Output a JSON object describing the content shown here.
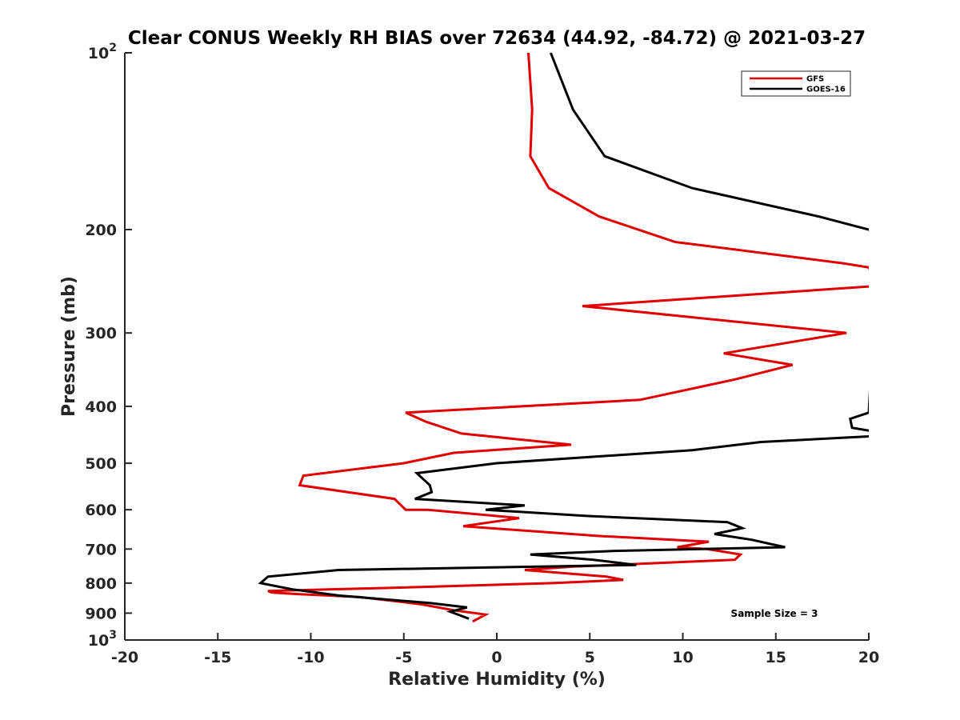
{
  "chart_data": {
    "type": "line",
    "title": "Clear CONUS Weekly RH BIAS over 72634 (44.92, -84.72) @ 2021-03-27",
    "xlabel": "Relative Humidity (%)",
    "ylabel": "Pressure (mb)",
    "xlim": [
      -20,
      20
    ],
    "ylim": [
      1000,
      100
    ],
    "yscale": "log",
    "x_ticks": [
      {
        "value": -20,
        "label": "-20"
      },
      {
        "value": -15,
        "label": "-15"
      },
      {
        "value": -10,
        "label": "-10"
      },
      {
        "value": -5,
        "label": "-5"
      },
      {
        "value": 0,
        "label": "0"
      },
      {
        "value": 5,
        "label": "5"
      },
      {
        "value": 10,
        "label": "10"
      },
      {
        "value": 15,
        "label": "15"
      },
      {
        "value": 20,
        "label": "20"
      }
    ],
    "y_ticks": [
      {
        "value": 100,
        "base": "10",
        "exp": "2"
      },
      {
        "value": 200,
        "base": "200",
        "exp": ""
      },
      {
        "value": 300,
        "base": "300",
        "exp": ""
      },
      {
        "value": 400,
        "base": "400",
        "exp": ""
      },
      {
        "value": 500,
        "base": "500",
        "exp": ""
      },
      {
        "value": 600,
        "base": "600",
        "exp": ""
      },
      {
        "value": 700,
        "base": "700",
        "exp": ""
      },
      {
        "value": 800,
        "base": "800",
        "exp": ""
      },
      {
        "value": 900,
        "base": "900",
        "exp": ""
      },
      {
        "value": 1000,
        "base": "10",
        "exp": "3"
      }
    ],
    "legend_position": "top-right",
    "series": [
      {
        "name": "GFS",
        "color": "#e00000",
        "points": [
          [
            1.7,
            100
          ],
          [
            1.9,
            125
          ],
          [
            1.8,
            150
          ],
          [
            2.8,
            170
          ],
          [
            5.5,
            190
          ],
          [
            9.6,
            210
          ],
          [
            18.5,
            228
          ],
          [
            20,
            232
          ],
          [
            20.5,
            250
          ],
          [
            20,
            250
          ],
          [
            4.6,
            270
          ],
          [
            18.8,
            300
          ],
          [
            12.2,
            325
          ],
          [
            15.9,
            340
          ],
          [
            12.8,
            360
          ],
          [
            7.7,
            390
          ],
          [
            -4.9,
            410
          ],
          [
            -3.8,
            425
          ],
          [
            -1.9,
            445
          ],
          [
            4.0,
            465
          ],
          [
            -2.3,
            480
          ],
          [
            -5.0,
            500
          ],
          [
            -10.4,
            525
          ],
          [
            -10.6,
            545
          ],
          [
            -5.5,
            575
          ],
          [
            -4.9,
            600
          ],
          [
            -3.7,
            600
          ],
          [
            1.2,
            620
          ],
          [
            -1.8,
            640
          ],
          [
            5.5,
            665
          ],
          [
            11.4,
            680
          ],
          [
            9.7,
            695
          ],
          [
            11.3,
            700
          ],
          [
            13.1,
            715
          ],
          [
            12.8,
            730
          ],
          [
            4.1,
            750
          ],
          [
            1.5,
            760
          ],
          [
            5.9,
            780
          ],
          [
            6.8,
            790
          ],
          [
            3.0,
            800
          ],
          [
            -5.6,
            815
          ],
          [
            -12.3,
            825
          ],
          [
            -12.1,
            830
          ],
          [
            -10.8,
            835
          ],
          [
            -7.4,
            845
          ],
          [
            -5.3,
            860
          ],
          [
            -4.0,
            870
          ],
          [
            -2.3,
            890
          ],
          [
            -0.6,
            905
          ],
          [
            -1.3,
            930
          ]
        ]
      },
      {
        "name": "GOES-16",
        "color": "#000000",
        "points": [
          [
            2.9,
            100
          ],
          [
            4.1,
            125
          ],
          [
            5.8,
            150
          ],
          [
            10.5,
            170
          ],
          [
            17.3,
            190
          ],
          [
            20,
            200
          ],
          [
            20.5,
            205
          ],
          [
            20,
            410
          ],
          [
            19.0,
            420
          ],
          [
            19.1,
            435
          ],
          [
            20,
            440
          ],
          [
            20.5,
            445
          ],
          [
            20,
            450
          ],
          [
            14.2,
            460
          ],
          [
            10.5,
            475
          ],
          [
            0,
            500
          ],
          [
            -4.3,
            520
          ],
          [
            -3.6,
            545
          ],
          [
            -3.5,
            560
          ],
          [
            -4.4,
            575
          ],
          [
            1.5,
            590
          ],
          [
            -0.6,
            600
          ],
          [
            4.9,
            615
          ],
          [
            12.4,
            630
          ],
          [
            13.2,
            645
          ],
          [
            11.7,
            660
          ],
          [
            13.7,
            675
          ],
          [
            15.5,
            695
          ],
          [
            6.4,
            705
          ],
          [
            1.8,
            715
          ],
          [
            5.2,
            730
          ],
          [
            7.5,
            745
          ],
          [
            -8.5,
            760
          ],
          [
            -12.3,
            780
          ],
          [
            -12.7,
            800
          ],
          [
            -11.0,
            820
          ],
          [
            -8.5,
            840
          ],
          [
            -3.6,
            865
          ],
          [
            -1.6,
            880
          ],
          [
            -2.5,
            895
          ],
          [
            -1.5,
            920
          ]
        ]
      }
    ],
    "annotation": "Sample Size = 3"
  }
}
